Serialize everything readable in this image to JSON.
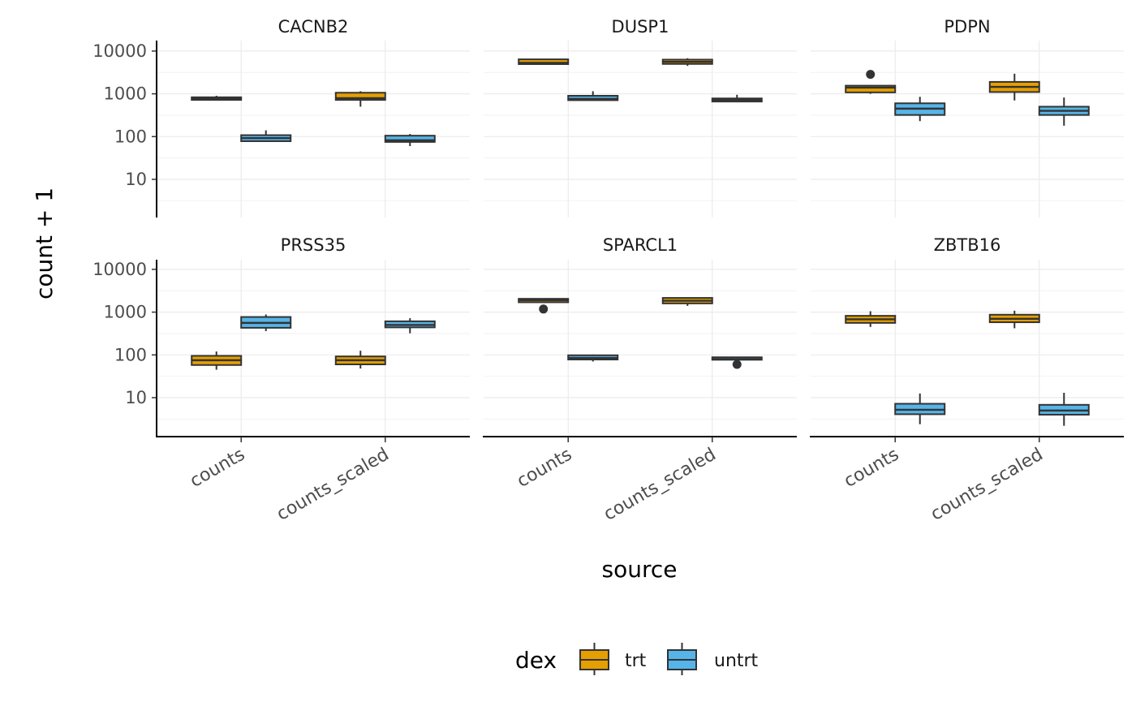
{
  "chart_data": {
    "type": "boxplot",
    "facet_by": "gene",
    "ylabel": "count + 1",
    "xlabel": "source",
    "y_scale": "log10",
    "ylim": [
      1.5,
      20000
    ],
    "y_ticks": [
      10,
      100,
      1000,
      10000
    ],
    "y_tick_labels": [
      "10",
      "100",
      "1000",
      "10000"
    ],
    "categories": [
      "counts",
      "counts_scaled"
    ],
    "legend": {
      "title": "dex",
      "position": "bottom",
      "entries": [
        {
          "name": "trt",
          "color": "#E69F00"
        },
        {
          "name": "untrt",
          "color": "#56B4E9"
        }
      ]
    },
    "grid": true,
    "panels": [
      {
        "title": "CACNB2",
        "boxes": [
          {
            "x": "counts",
            "group": "trt",
            "low": 700,
            "q1": 720,
            "median": 770,
            "q3": 830,
            "high": 900,
            "outliers": []
          },
          {
            "x": "counts",
            "group": "untrt",
            "low": 75,
            "q1": 78,
            "median": 92,
            "q3": 108,
            "high": 140,
            "outliers": []
          },
          {
            "x": "counts_scaled",
            "group": "trt",
            "low": 500,
            "q1": 720,
            "median": 790,
            "q3": 1060,
            "high": 1150,
            "outliers": []
          },
          {
            "x": "counts_scaled",
            "group": "untrt",
            "low": 60,
            "q1": 75,
            "median": 82,
            "q3": 105,
            "high": 115,
            "outliers": []
          }
        ]
      },
      {
        "title": "DUSP1",
        "boxes": [
          {
            "x": "counts",
            "group": "trt",
            "low": 4900,
            "q1": 4950,
            "median": 5300,
            "q3": 6400,
            "high": 6500,
            "outliers": []
          },
          {
            "x": "counts",
            "group": "untrt",
            "low": 700,
            "q1": 710,
            "median": 760,
            "q3": 900,
            "high": 1150,
            "outliers": []
          },
          {
            "x": "counts_scaled",
            "group": "trt",
            "low": 4500,
            "q1": 5000,
            "median": 5600,
            "q3": 6300,
            "high": 6800,
            "outliers": []
          },
          {
            "x": "counts_scaled",
            "group": "untrt",
            "low": 640,
            "q1": 660,
            "median": 720,
            "q3": 780,
            "high": 950,
            "outliers": []
          }
        ]
      },
      {
        "title": "PDPN",
        "boxes": [
          {
            "x": "counts",
            "group": "trt",
            "low": 1000,
            "q1": 1080,
            "median": 1400,
            "q3": 1550,
            "high": 1600,
            "outliers": [
              2850
            ]
          },
          {
            "x": "counts",
            "group": "untrt",
            "low": 230,
            "q1": 320,
            "median": 450,
            "q3": 600,
            "high": 850,
            "outliers": []
          },
          {
            "x": "counts_scaled",
            "group": "trt",
            "low": 700,
            "q1": 1100,
            "median": 1450,
            "q3": 1900,
            "high": 2950,
            "outliers": []
          },
          {
            "x": "counts_scaled",
            "group": "untrt",
            "low": 180,
            "q1": 320,
            "median": 400,
            "q3": 500,
            "high": 820,
            "outliers": []
          }
        ]
      },
      {
        "title": "PRSS35",
        "boxes": [
          {
            "x": "counts",
            "group": "trt",
            "low": 45,
            "q1": 58,
            "median": 75,
            "q3": 95,
            "high": 120,
            "outliers": []
          },
          {
            "x": "counts",
            "group": "untrt",
            "low": 360,
            "q1": 430,
            "median": 560,
            "q3": 770,
            "high": 880,
            "outliers": []
          },
          {
            "x": "counts_scaled",
            "group": "trt",
            "low": 48,
            "q1": 60,
            "median": 75,
            "q3": 92,
            "high": 125,
            "outliers": []
          },
          {
            "x": "counts_scaled",
            "group": "untrt",
            "low": 320,
            "q1": 440,
            "median": 500,
            "q3": 610,
            "high": 720,
            "outliers": []
          }
        ]
      },
      {
        "title": "SPARCL1",
        "boxes": [
          {
            "x": "counts",
            "group": "trt",
            "low": 1650,
            "q1": 1700,
            "median": 1900,
            "q3": 2050,
            "high": 2100,
            "outliers": [
              1180
            ]
          },
          {
            "x": "counts",
            "group": "untrt",
            "low": 70,
            "q1": 78,
            "median": 85,
            "q3": 98,
            "high": 102,
            "outliers": []
          },
          {
            "x": "counts_scaled",
            "group": "trt",
            "low": 1400,
            "q1": 1600,
            "median": 1850,
            "q3": 2150,
            "high": 2200,
            "outliers": []
          },
          {
            "x": "counts_scaled",
            "group": "untrt",
            "low": 75,
            "q1": 77,
            "median": 80,
            "q3": 88,
            "high": 90,
            "outliers": [
              60
            ]
          }
        ]
      },
      {
        "title": "ZBTB16",
        "boxes": [
          {
            "x": "counts",
            "group": "trt",
            "low": 450,
            "q1": 560,
            "median": 680,
            "q3": 820,
            "high": 1050,
            "outliers": []
          },
          {
            "x": "counts",
            "group": "untrt",
            "low": 2.4,
            "q1": 4.1,
            "median": 5.2,
            "q3": 7.2,
            "high": 12.5,
            "outliers": []
          },
          {
            "x": "counts_scaled",
            "group": "trt",
            "low": 420,
            "q1": 580,
            "median": 700,
            "q3": 870,
            "high": 1080,
            "outliers": []
          },
          {
            "x": "counts_scaled",
            "group": "untrt",
            "low": 2.2,
            "q1": 4.0,
            "median": 5.0,
            "q3": 6.8,
            "high": 13.0,
            "outliers": []
          }
        ]
      }
    ]
  }
}
